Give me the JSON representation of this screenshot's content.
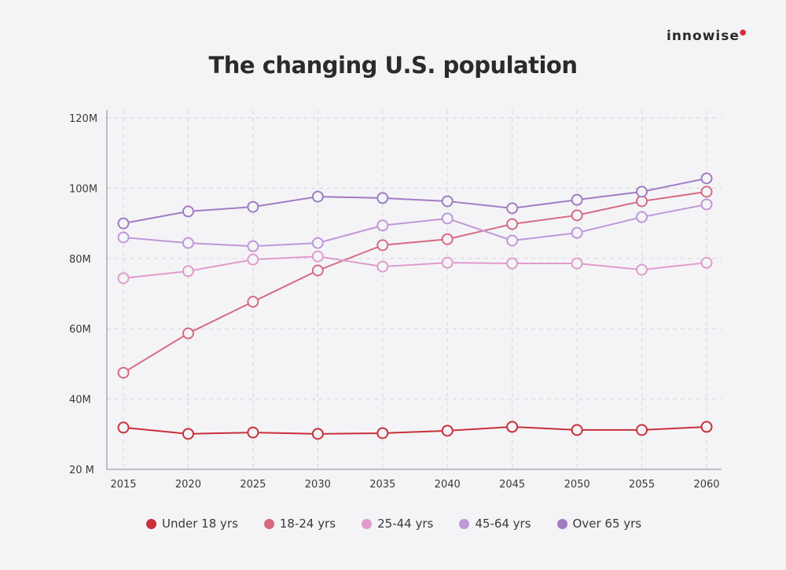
{
  "brand": {
    "logo_text": "innowise"
  },
  "chart_data": {
    "type": "line",
    "title": "The changing U.S. population",
    "xlabel": "",
    "ylabel": "",
    "x": [
      2015,
      2020,
      2025,
      2030,
      2035,
      2040,
      2045,
      2050,
      2055,
      2060
    ],
    "x_tick_labels": [
      "2015",
      "2020",
      "2025",
      "2030",
      "2035",
      "2040",
      "2045",
      "2050",
      "2055",
      "2060"
    ],
    "y_ticks": [
      20,
      40,
      60,
      80,
      100,
      120
    ],
    "y_tick_labels": [
      "20 M",
      "40M",
      "60M",
      "80M",
      "100M",
      "120M"
    ],
    "ylim": [
      20,
      120
    ],
    "unit": "millions",
    "grid": true,
    "legend_position": "bottom",
    "series": [
      {
        "name": "Under 18 yrs",
        "color": "#c8303a",
        "values": [
          31.9,
          30.1,
          30.5,
          30.1,
          30.3,
          31.0,
          32.1,
          31.2,
          31.2,
          32.1
        ]
      },
      {
        "name": "18-24 yrs",
        "color": "#d66b80",
        "values": [
          47.5,
          58.7,
          67.7,
          76.6,
          83.8,
          85.5,
          89.8,
          92.3,
          96.3,
          99.0
        ]
      },
      {
        "name": "25-44 yrs",
        "color": "#e09ccb",
        "values": [
          74.4,
          76.4,
          79.7,
          80.6,
          77.7,
          78.8,
          78.6,
          78.6,
          76.8,
          78.8
        ]
      },
      {
        "name": "45-64 yrs",
        "color": "#bf98d8",
        "values": [
          86.0,
          84.4,
          83.5,
          84.4,
          89.4,
          91.4,
          85.1,
          87.3,
          91.8,
          95.4
        ]
      },
      {
        "name": "Over 65 yrs",
        "color": "#a27cc2",
        "values": [
          90.0,
          93.4,
          94.7,
          97.6,
          97.2,
          96.3,
          94.3,
          96.7,
          99.0,
          102.8
        ]
      }
    ]
  }
}
